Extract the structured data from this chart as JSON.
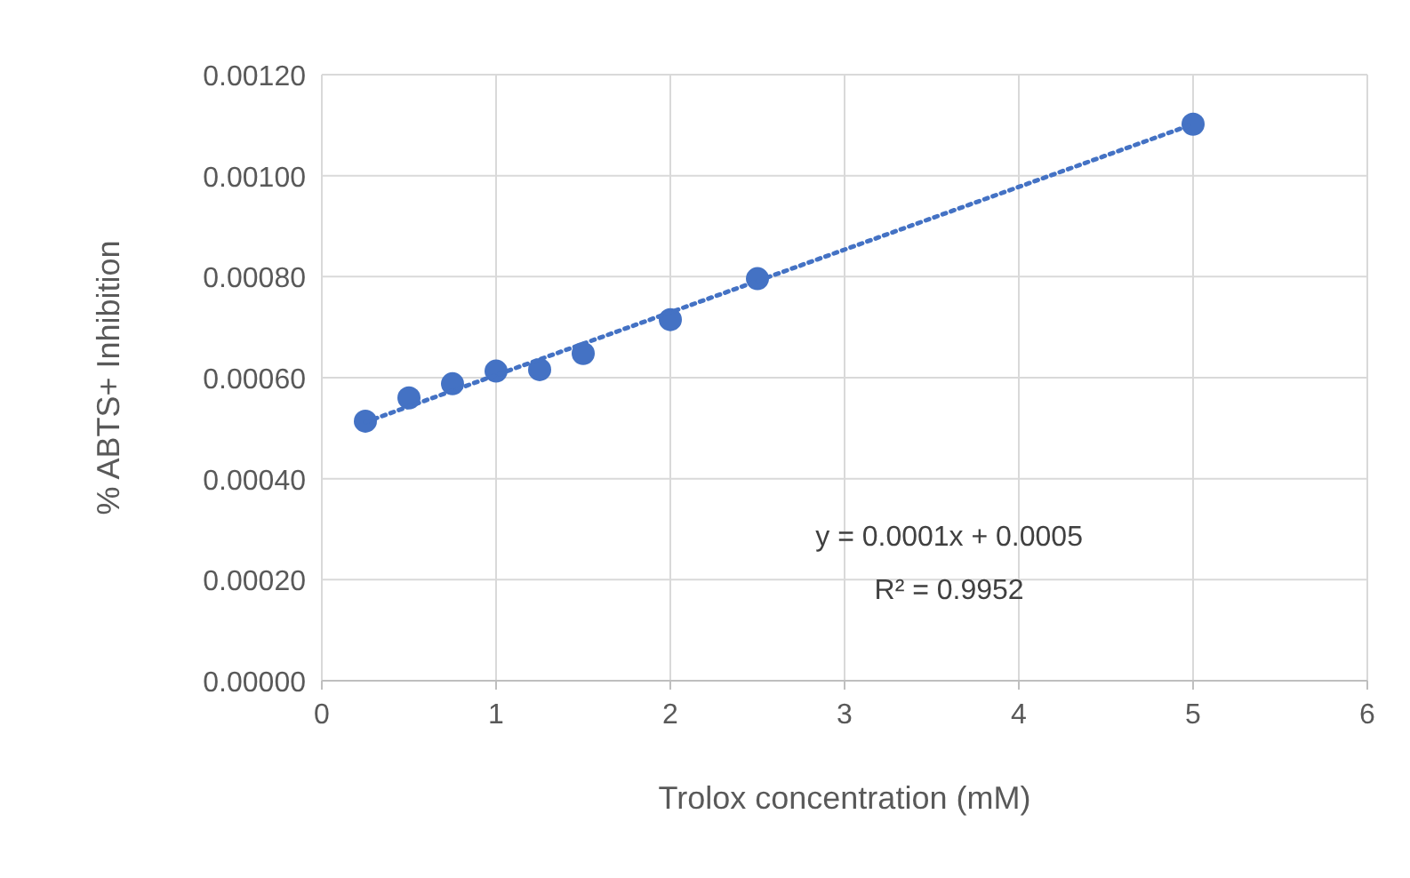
{
  "chart_data": {
    "type": "scatter",
    "xlabel": "Trolox concentration (mM)",
    "ylabel": "% ABTS+ Inhibition",
    "x": [
      0.25,
      0.5,
      0.75,
      1,
      1.25,
      1.5,
      2,
      2.5,
      5
    ],
    "series": [
      {
        "color": "#4472c4",
        "marker": "circle",
        "values": [
          0.000514,
          0.00056,
          0.000588,
          0.000613,
          0.000616,
          0.000648,
          0.000715,
          0.000796,
          0.001102
        ]
      },
      {
        "type": "line",
        "color": "#4472c4",
        "line_style": "dotted",
        "marker": "none",
        "x": [
          0.25,
          5
        ],
        "values": [
          0.000512,
          0.001102
        ]
      }
    ],
    "annotations": [
      "y = 0.0001x + 0.0005",
      "R² = 0.9952"
    ],
    "xlim": [
      0,
      6
    ],
    "xticks": [
      0,
      1,
      2,
      3,
      4,
      5,
      6
    ],
    "ylim": [
      0,
      0.0012
    ],
    "yticks": [
      {
        "value": 0,
        "label": "0.00000"
      },
      {
        "value": 0.0002,
        "label": "0.00020"
      },
      {
        "value": 0.0004,
        "label": "0.00040"
      },
      {
        "value": 0.0006,
        "label": "0.00060"
      },
      {
        "value": 0.0008,
        "label": "0.00080"
      },
      {
        "value": 0.001,
        "label": "0.00100"
      },
      {
        "value": 0.0012,
        "label": "0.00120"
      }
    ],
    "grid": true
  }
}
